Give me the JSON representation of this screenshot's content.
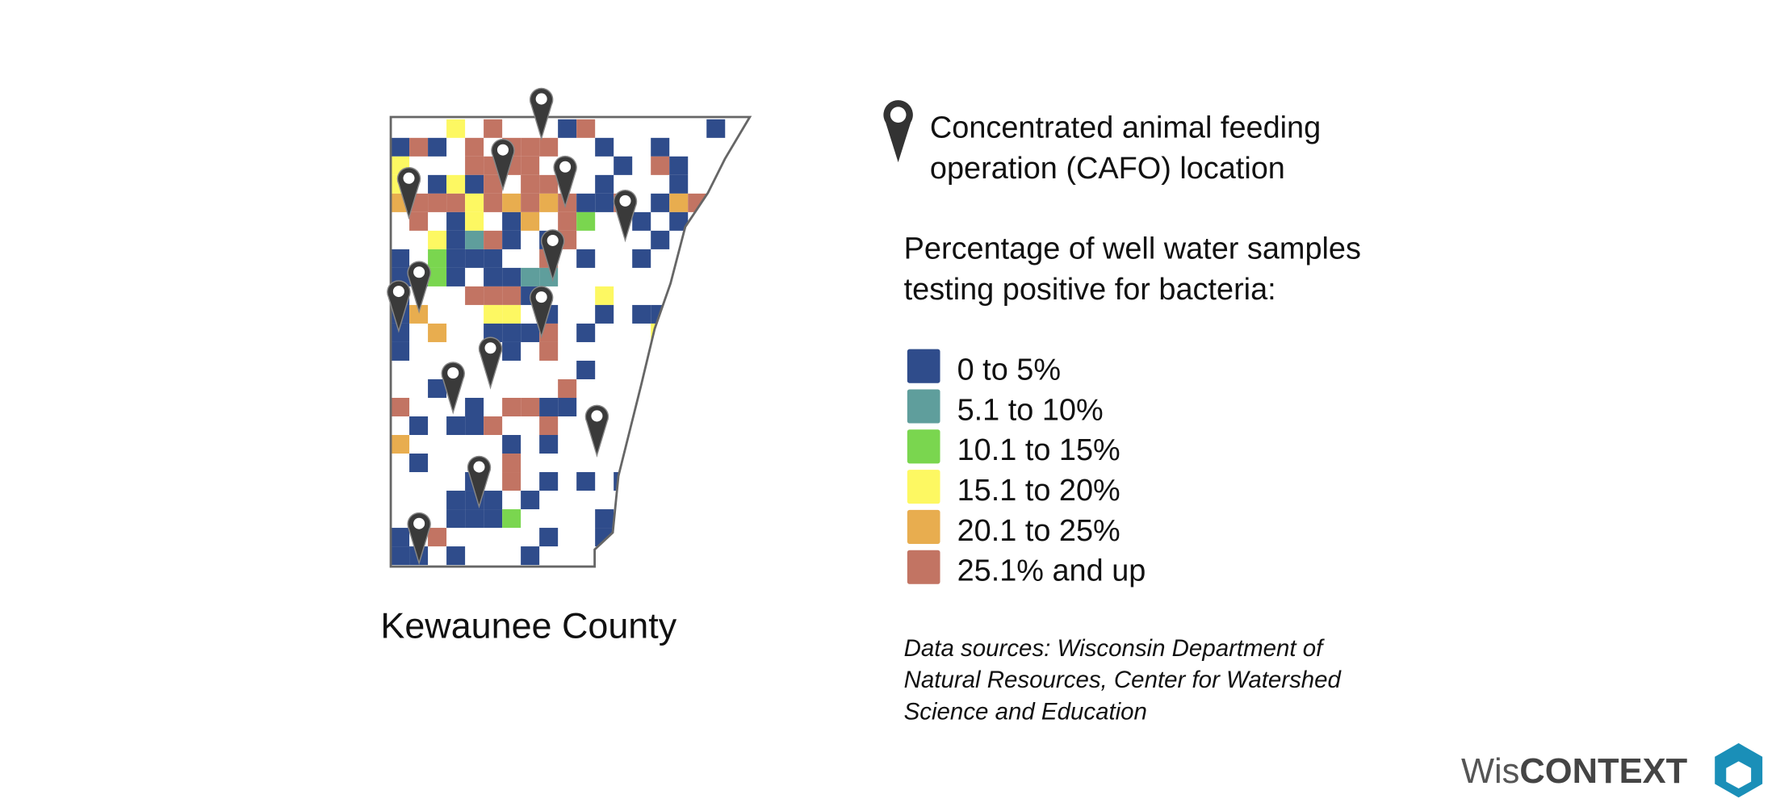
{
  "map_label": "Kewaunee County",
  "legend": {
    "cafo_label": [
      "Concentrated animal feeding",
      "operation (CAFO) location"
    ],
    "heading": [
      "Percentage of well water samples",
      "testing positive for bacteria:"
    ],
    "classes": [
      {
        "label": "0 to 5%",
        "color": "#2f4c8b"
      },
      {
        "label": "5.1 to 10%",
        "color": "#5f9e9c"
      },
      {
        "label": "10.1 to 15%",
        "color": "#7ad64f"
      },
      {
        "label": "15.1 to 20%",
        "color": "#fdf862"
      },
      {
        "label": "20.1 to 25%",
        "color": "#e8ad4f"
      },
      {
        "label": "25.1% and up",
        "color": "#c27463"
      }
    ]
  },
  "source": [
    "Data sources: Wisconsin Department of",
    "Natural Resources, Center for Watershed",
    "Science and Education"
  ],
  "logo": {
    "light": "Wis",
    "bold": "CONTEXT"
  }
}
